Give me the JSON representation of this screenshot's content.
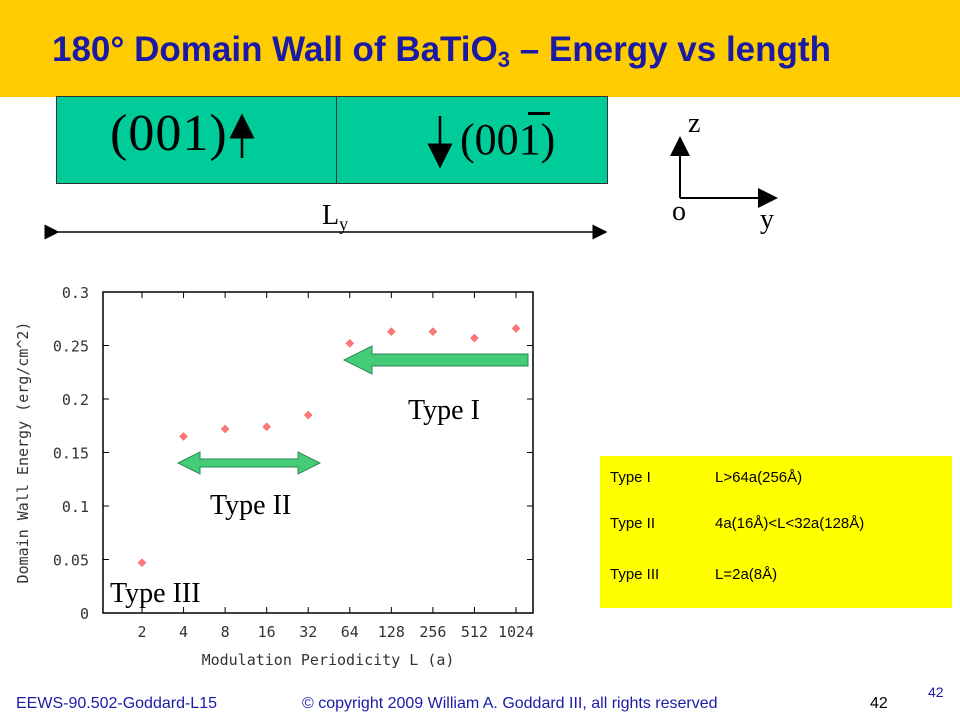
{
  "slide": {
    "title_main": "180° Domain Wall of BaTiO",
    "title_sub": "3",
    "title_rest": " – Energy vs length"
  },
  "diagram": {
    "left_miller": "(001)",
    "right_miller": "(001)",
    "length_label_main": "L",
    "length_label_sub": "y",
    "axis_z": "z",
    "axis_o": "o",
    "axis_y": "y"
  },
  "annotations": {
    "type_i": "Type I",
    "type_ii": "Type II",
    "type_iii": "Type III"
  },
  "legend": {
    "rows": [
      {
        "name": "Type I",
        "value": "L>64a(256Å)"
      },
      {
        "name": "Type II",
        "value": "4a(16Å)<L<32a(128Å)"
      },
      {
        "name": "Type III",
        "value": "L=2a(8Å)"
      }
    ]
  },
  "chart_data": {
    "type": "scatter",
    "xlabel": "Modulation Periodicity L (a)",
    "ylabel": "Domain Wall Energy (erg/cm^2)",
    "categories": [
      "2",
      "4",
      "8",
      "16",
      "32",
      "64",
      "128",
      "256",
      "512",
      "1024"
    ],
    "values": [
      0.047,
      0.165,
      0.172,
      0.174,
      0.185,
      0.252,
      0.263,
      0.263,
      0.257,
      0.266
    ],
    "ylim": [
      0,
      0.3
    ],
    "yticks": [
      "0",
      "0.05",
      "0.1",
      "0.15",
      "0.2",
      "0.25",
      "0.3"
    ],
    "grid": false,
    "marker_color": "#ff7777"
  },
  "footer": {
    "course": "EEWS-90.502-Goddard-L15",
    "copyright": "© copyright 2009 William A. Goddard III, all rights reserved",
    "page": "42",
    "slide_number": "42"
  },
  "colors": {
    "title_bar": "#ffcc00",
    "title_text": "#1a1aa6",
    "domain_fill": "#00cc99",
    "arrow_fill": "#44cc77",
    "legend_bg": "#ffff00"
  }
}
